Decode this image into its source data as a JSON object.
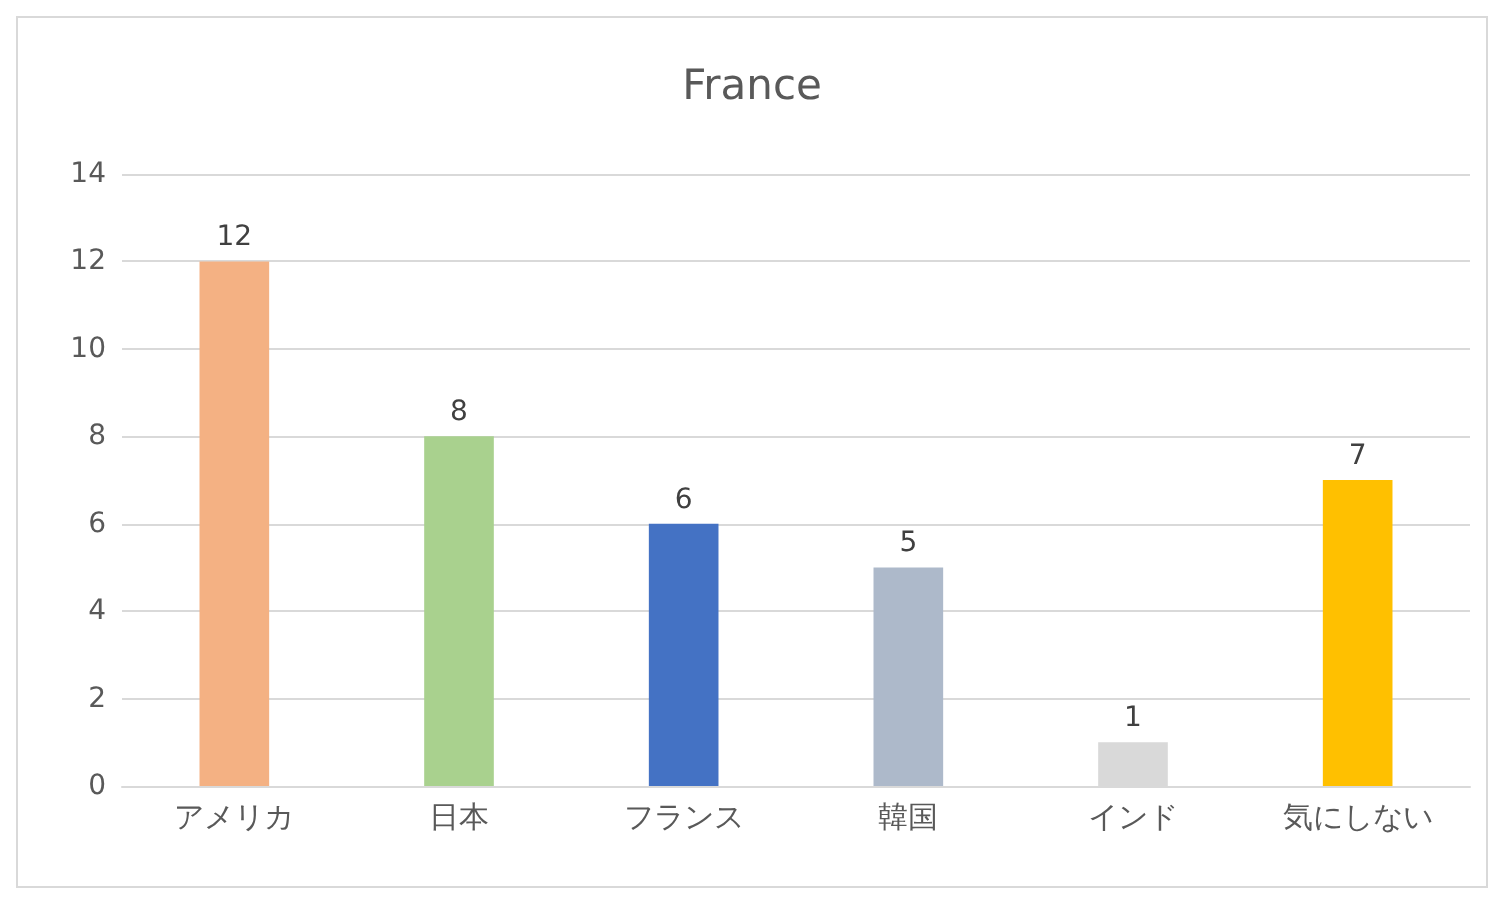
{
  "chart_data": {
    "type": "bar",
    "title": "France",
    "categories": [
      "アメリカ",
      "日本",
      "フランス",
      "韓国",
      "インド",
      "気にしない"
    ],
    "values": [
      12,
      8,
      6,
      5,
      1,
      7
    ],
    "colors": [
      "#f4b183",
      "#a9d18e",
      "#4472c4",
      "#adb9ca",
      "#d9d9d9",
      "#ffc000"
    ],
    "ylim": [
      0,
      14
    ],
    "yticks": [
      0,
      2,
      4,
      6,
      8,
      10,
      12,
      14
    ],
    "grid": "y",
    "data_labels": true
  }
}
